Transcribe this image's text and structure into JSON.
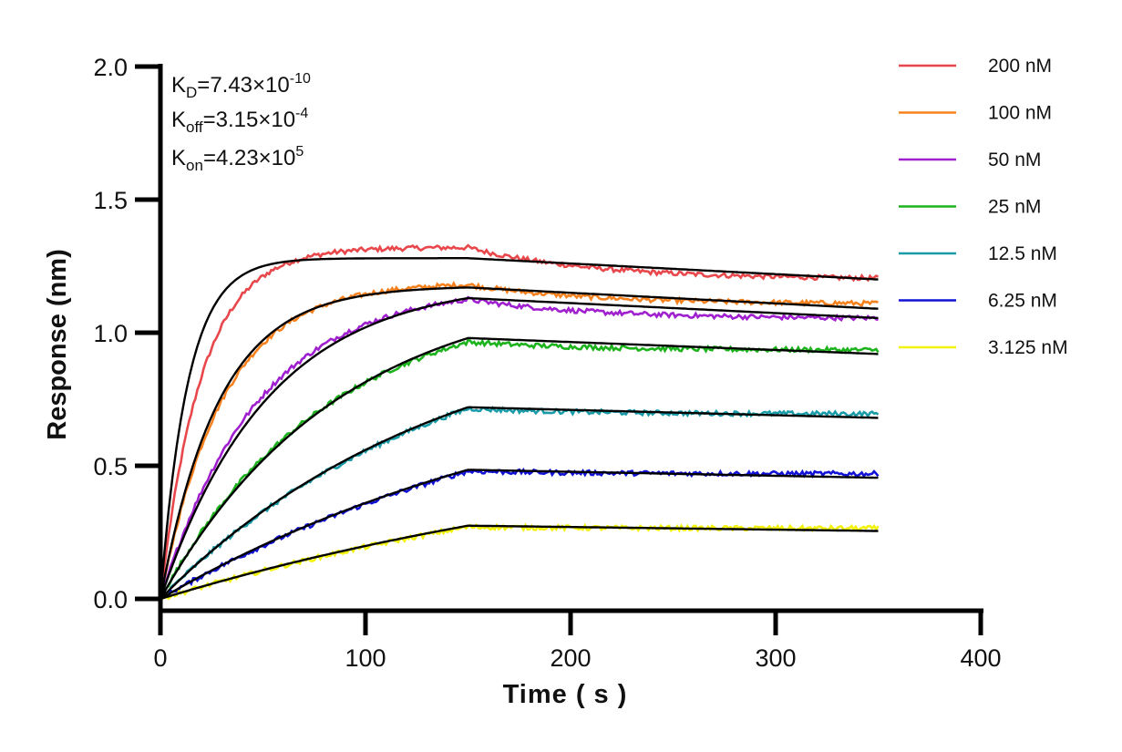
{
  "chart_data": {
    "type": "line",
    "title": "",
    "xlabel": "Time ( s )",
    "ylabel": "Response (nm)",
    "xlim": [
      0,
      400
    ],
    "ylim": [
      0,
      2.0
    ],
    "xticks": [
      0,
      100,
      200,
      300,
      400
    ],
    "xtick_labels": [
      "0",
      "100",
      "200",
      "300",
      "400"
    ],
    "yticks": [
      0,
      0.5,
      1.0,
      1.5,
      2.0
    ],
    "ytick_labels": [
      "0.0",
      "0.5",
      "1.0",
      "1.5",
      "2.0"
    ],
    "grid": false,
    "legend_position": "top-right",
    "annotations": {
      "kd": {
        "base": "K",
        "sub": "D",
        "value": "=7.43×10",
        "exp": "-10"
      },
      "koff": {
        "base": "K",
        "sub": "off",
        "value": "=3.15×10",
        "exp": "-4"
      },
      "kon": {
        "base": "K",
        "sub": "on",
        "value": "=4.23×10",
        "exp": "5"
      }
    },
    "association_end": 150,
    "x_end": 350,
    "fit_color": "#000000",
    "series": [
      {
        "name": "200 nM",
        "color": "#e8474b",
        "plateau": 1.28,
        "end": 1.2,
        "k_obs": 0.075,
        "data_assoc_end": 1.32,
        "data_end": 1.205,
        "data_k": 0.05
      },
      {
        "name": "100 nM",
        "color": "#f5821f",
        "plateau": 1.17,
        "end": 1.09,
        "k_obs": 0.035,
        "data_assoc_end": 1.18,
        "data_end": 1.11,
        "data_k": 0.033
      },
      {
        "name": "50 nM",
        "color": "#a020d0",
        "plateau": 1.13,
        "end": 1.055,
        "k_obs": 0.019,
        "data_assoc_end": 1.125,
        "data_end": 1.055,
        "data_k": 0.021
      },
      {
        "name": "25 nM",
        "color": "#1db31d",
        "plateau": 0.98,
        "end": 0.92,
        "k_obs": 0.0115,
        "data_assoc_end": 0.965,
        "data_end": 0.935,
        "data_k": 0.0125
      },
      {
        "name": "12.5 nM",
        "color": "#1a9ca8",
        "plateau": 0.72,
        "end": 0.68,
        "k_obs": 0.0072,
        "data_assoc_end": 0.715,
        "data_end": 0.695,
        "data_k": 0.0072
      },
      {
        "name": "6.25 nM",
        "color": "#1212d6",
        "plateau": 0.485,
        "end": 0.455,
        "k_obs": 0.0048,
        "data_assoc_end": 0.48,
        "data_end": 0.47,
        "data_k": 0.0048
      },
      {
        "name": "3.125 nM",
        "color": "#f2f20a",
        "plateau": 0.275,
        "end": 0.255,
        "k_obs": 0.0035,
        "data_assoc_end": 0.27,
        "data_end": 0.265,
        "data_k": 0.0035
      }
    ]
  }
}
